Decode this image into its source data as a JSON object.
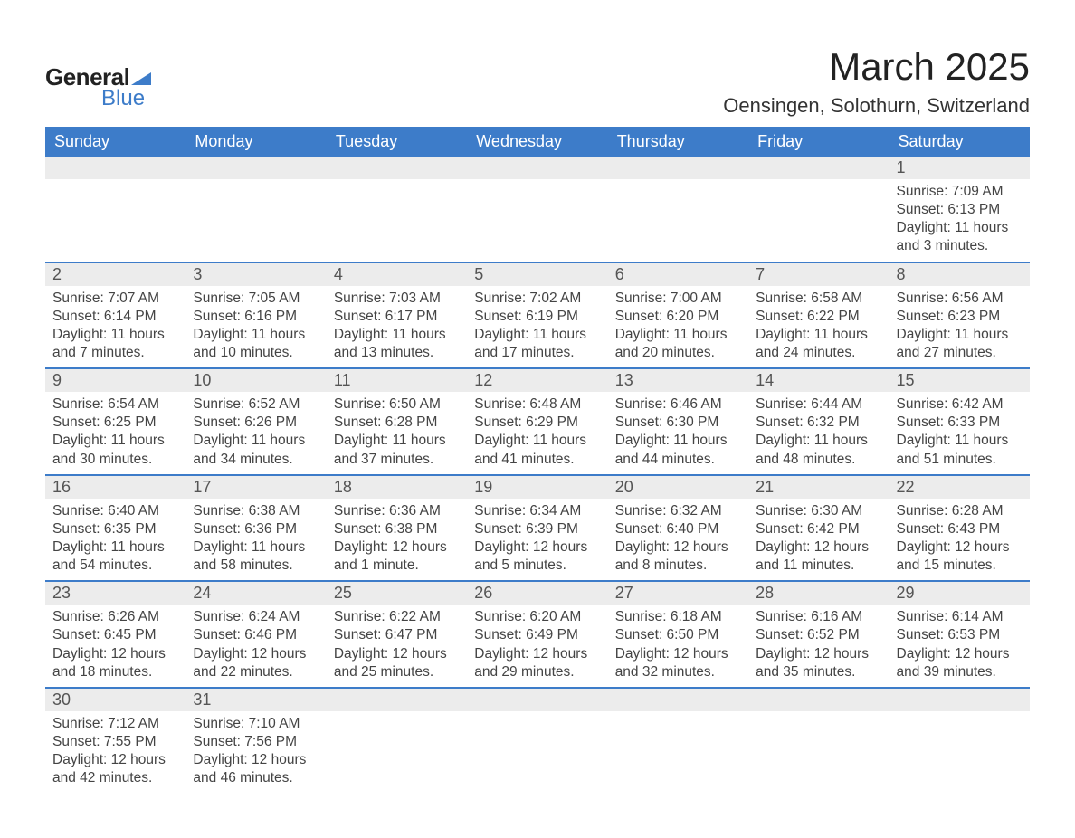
{
  "brand": {
    "general": "General",
    "blue": "Blue",
    "tri_color": "#3d7cc9"
  },
  "title": "March 2025",
  "location": "Oensingen, Solothurn, Switzerland",
  "colors": {
    "header_bg": "#3d7cc9",
    "header_text": "#ffffff",
    "row_divider": "#3d7cc9",
    "daynum_bg": "#ececec",
    "body_text": "#444444",
    "page_bg": "#ffffff"
  },
  "typography": {
    "month_title_fontsize": 42,
    "location_fontsize": 22,
    "weekday_fontsize": 18,
    "daynum_fontsize": 18,
    "body_fontsize": 15.5
  },
  "calendar": {
    "type": "table",
    "columns": [
      "Sunday",
      "Monday",
      "Tuesday",
      "Wednesday",
      "Thursday",
      "Friday",
      "Saturday"
    ],
    "weeks": [
      [
        {
          "n": "",
          "lines": []
        },
        {
          "n": "",
          "lines": []
        },
        {
          "n": "",
          "lines": []
        },
        {
          "n": "",
          "lines": []
        },
        {
          "n": "",
          "lines": []
        },
        {
          "n": "",
          "lines": []
        },
        {
          "n": "1",
          "lines": [
            "Sunrise: 7:09 AM",
            "Sunset: 6:13 PM",
            "Daylight: 11 hours and 3 minutes."
          ]
        }
      ],
      [
        {
          "n": "2",
          "lines": [
            "Sunrise: 7:07 AM",
            "Sunset: 6:14 PM",
            "Daylight: 11 hours and 7 minutes."
          ]
        },
        {
          "n": "3",
          "lines": [
            "Sunrise: 7:05 AM",
            "Sunset: 6:16 PM",
            "Daylight: 11 hours and 10 minutes."
          ]
        },
        {
          "n": "4",
          "lines": [
            "Sunrise: 7:03 AM",
            "Sunset: 6:17 PM",
            "Daylight: 11 hours and 13 minutes."
          ]
        },
        {
          "n": "5",
          "lines": [
            "Sunrise: 7:02 AM",
            "Sunset: 6:19 PM",
            "Daylight: 11 hours and 17 minutes."
          ]
        },
        {
          "n": "6",
          "lines": [
            "Sunrise: 7:00 AM",
            "Sunset: 6:20 PM",
            "Daylight: 11 hours and 20 minutes."
          ]
        },
        {
          "n": "7",
          "lines": [
            "Sunrise: 6:58 AM",
            "Sunset: 6:22 PM",
            "Daylight: 11 hours and 24 minutes."
          ]
        },
        {
          "n": "8",
          "lines": [
            "Sunrise: 6:56 AM",
            "Sunset: 6:23 PM",
            "Daylight: 11 hours and 27 minutes."
          ]
        }
      ],
      [
        {
          "n": "9",
          "lines": [
            "Sunrise: 6:54 AM",
            "Sunset: 6:25 PM",
            "Daylight: 11 hours and 30 minutes."
          ]
        },
        {
          "n": "10",
          "lines": [
            "Sunrise: 6:52 AM",
            "Sunset: 6:26 PM",
            "Daylight: 11 hours and 34 minutes."
          ]
        },
        {
          "n": "11",
          "lines": [
            "Sunrise: 6:50 AM",
            "Sunset: 6:28 PM",
            "Daylight: 11 hours and 37 minutes."
          ]
        },
        {
          "n": "12",
          "lines": [
            "Sunrise: 6:48 AM",
            "Sunset: 6:29 PM",
            "Daylight: 11 hours and 41 minutes."
          ]
        },
        {
          "n": "13",
          "lines": [
            "Sunrise: 6:46 AM",
            "Sunset: 6:30 PM",
            "Daylight: 11 hours and 44 minutes."
          ]
        },
        {
          "n": "14",
          "lines": [
            "Sunrise: 6:44 AM",
            "Sunset: 6:32 PM",
            "Daylight: 11 hours and 48 minutes."
          ]
        },
        {
          "n": "15",
          "lines": [
            "Sunrise: 6:42 AM",
            "Sunset: 6:33 PM",
            "Daylight: 11 hours and 51 minutes."
          ]
        }
      ],
      [
        {
          "n": "16",
          "lines": [
            "Sunrise: 6:40 AM",
            "Sunset: 6:35 PM",
            "Daylight: 11 hours and 54 minutes."
          ]
        },
        {
          "n": "17",
          "lines": [
            "Sunrise: 6:38 AM",
            "Sunset: 6:36 PM",
            "Daylight: 11 hours and 58 minutes."
          ]
        },
        {
          "n": "18",
          "lines": [
            "Sunrise: 6:36 AM",
            "Sunset: 6:38 PM",
            "Daylight: 12 hours and 1 minute."
          ]
        },
        {
          "n": "19",
          "lines": [
            "Sunrise: 6:34 AM",
            "Sunset: 6:39 PM",
            "Daylight: 12 hours and 5 minutes."
          ]
        },
        {
          "n": "20",
          "lines": [
            "Sunrise: 6:32 AM",
            "Sunset: 6:40 PM",
            "Daylight: 12 hours and 8 minutes."
          ]
        },
        {
          "n": "21",
          "lines": [
            "Sunrise: 6:30 AM",
            "Sunset: 6:42 PM",
            "Daylight: 12 hours and 11 minutes."
          ]
        },
        {
          "n": "22",
          "lines": [
            "Sunrise: 6:28 AM",
            "Sunset: 6:43 PM",
            "Daylight: 12 hours and 15 minutes."
          ]
        }
      ],
      [
        {
          "n": "23",
          "lines": [
            "Sunrise: 6:26 AM",
            "Sunset: 6:45 PM",
            "Daylight: 12 hours and 18 minutes."
          ]
        },
        {
          "n": "24",
          "lines": [
            "Sunrise: 6:24 AM",
            "Sunset: 6:46 PM",
            "Daylight: 12 hours and 22 minutes."
          ]
        },
        {
          "n": "25",
          "lines": [
            "Sunrise: 6:22 AM",
            "Sunset: 6:47 PM",
            "Daylight: 12 hours and 25 minutes."
          ]
        },
        {
          "n": "26",
          "lines": [
            "Sunrise: 6:20 AM",
            "Sunset: 6:49 PM",
            "Daylight: 12 hours and 29 minutes."
          ]
        },
        {
          "n": "27",
          "lines": [
            "Sunrise: 6:18 AM",
            "Sunset: 6:50 PM",
            "Daylight: 12 hours and 32 minutes."
          ]
        },
        {
          "n": "28",
          "lines": [
            "Sunrise: 6:16 AM",
            "Sunset: 6:52 PM",
            "Daylight: 12 hours and 35 minutes."
          ]
        },
        {
          "n": "29",
          "lines": [
            "Sunrise: 6:14 AM",
            "Sunset: 6:53 PM",
            "Daylight: 12 hours and 39 minutes."
          ]
        }
      ],
      [
        {
          "n": "30",
          "lines": [
            "Sunrise: 7:12 AM",
            "Sunset: 7:55 PM",
            "Daylight: 12 hours and 42 minutes."
          ]
        },
        {
          "n": "31",
          "lines": [
            "Sunrise: 7:10 AM",
            "Sunset: 7:56 PM",
            "Daylight: 12 hours and 46 minutes."
          ]
        },
        {
          "n": "",
          "lines": []
        },
        {
          "n": "",
          "lines": []
        },
        {
          "n": "",
          "lines": []
        },
        {
          "n": "",
          "lines": []
        },
        {
          "n": "",
          "lines": []
        }
      ]
    ]
  }
}
